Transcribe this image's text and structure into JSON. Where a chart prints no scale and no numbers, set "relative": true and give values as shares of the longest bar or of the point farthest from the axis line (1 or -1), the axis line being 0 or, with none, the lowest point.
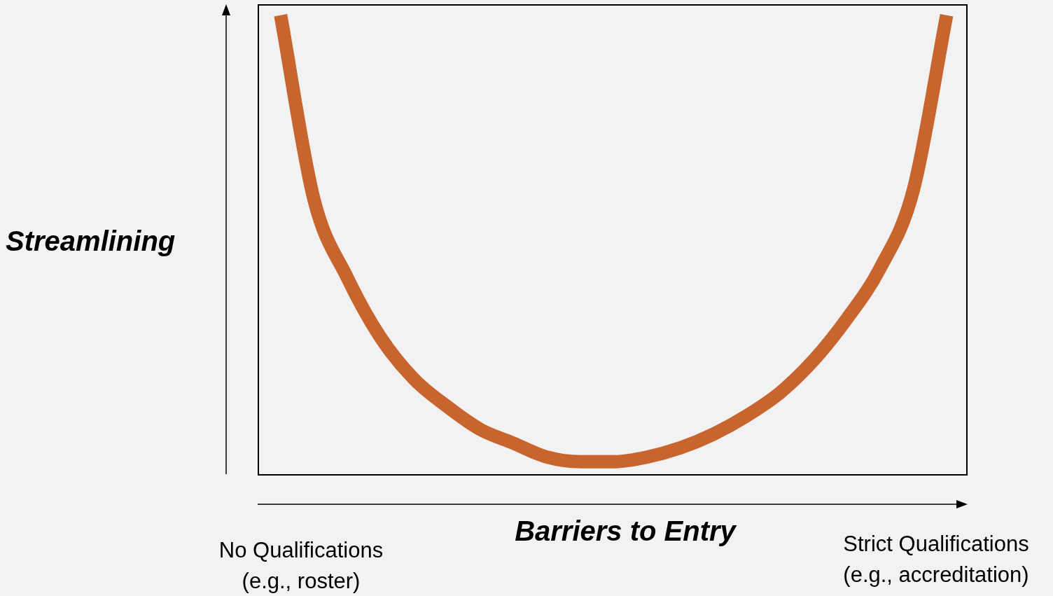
{
  "chart_data": {
    "type": "line",
    "relative": true,
    "xlabel": "Barriers to Entry",
    "ylabel": "Streamlining",
    "categories": [
      null,
      null,
      null,
      null,
      null,
      null,
      null,
      null,
      null,
      null,
      null,
      null,
      null,
      null,
      null,
      null,
      null,
      null,
      null,
      null,
      null
    ],
    "series": [
      {
        "color": "#c8652f",
        "values": [
          1,
          0.6,
          0.43,
          0.3,
          0.21,
          0.15,
          0.1,
          0.07,
          0.04,
          0.03,
          0.03,
          0.04,
          0.06,
          0.09,
          0.13,
          0.18,
          0.25,
          0.34,
          0.45,
          0.62,
          1
        ]
      }
    ],
    "annotations": [
      "No Qualifications\n(e.g., roster)",
      "Strict Qualifications\n(e.g., accreditation)"
    ],
    "legend": false,
    "marker": "none",
    "line_style": "solid"
  }
}
